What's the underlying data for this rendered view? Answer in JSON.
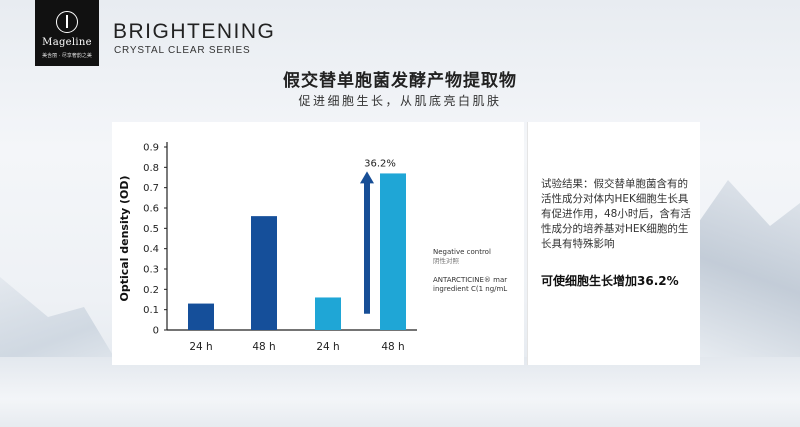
{
  "brand": {
    "logo_name": "Mageline",
    "logo_sub": "美含丽 · 尽享奢韵之美",
    "title": "BRIGHTENING",
    "subtitle": "CRYSTAL CLEAR SERIES"
  },
  "headline": "假交替单胞菌发酵产物提取物",
  "subheadline": "促进细胞生长，从肌底亮白肌肤",
  "legend": {
    "negative_en": "Negative control",
    "negative_cn": "阴性对照",
    "ingredient_line1": "ANTARCTICINE® mar",
    "ingredient_line2": "ingredient C(1 ng/mL"
  },
  "result": {
    "text": "试验结果：假交替单胞菌含有的活性成分对体内HEK细胞生长具有促进作用，48小时后，含有活性成分的培养基对HEK细胞的生长具有特殊影响",
    "highlight": "可使细胞生长增加36.2%"
  },
  "colors": {
    "negative_control": "#154f9a",
    "ingredient": "#1fa6d6",
    "arrow": "#174e96"
  },
  "chart_data": {
    "type": "bar",
    "categories": [
      "24 h",
      "48 h",
      "24 h",
      "48 h"
    ],
    "values": [
      0.13,
      0.56,
      0.16,
      0.77
    ],
    "series_groups": [
      "Negative control",
      "Negative control",
      "ANTARCTICINE® marine ingredient",
      "ANTARCTICINE® marine ingredient"
    ],
    "ylabel": "Optical density (OD)",
    "ylim": [
      0,
      0.9
    ],
    "yticks": [
      "0",
      "0.1",
      "0.2",
      "0.3",
      "0.4",
      "0.5",
      "0.6",
      "0.7",
      "0.8",
      "0.9"
    ],
    "annotation": "36.2%",
    "grid": false
  }
}
